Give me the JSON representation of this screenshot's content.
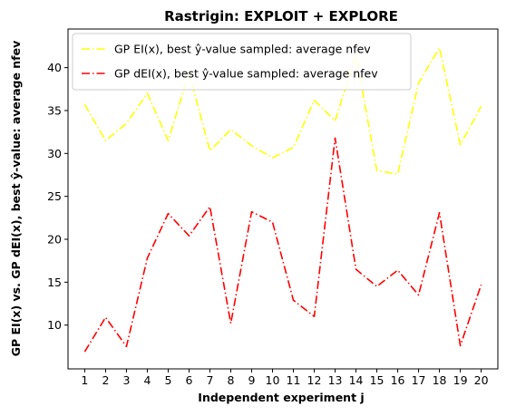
{
  "chart_data": {
    "type": "line",
    "title": "Rastrigin: EXPLOIT + EXPLORE",
    "xlabel": "Independent experiment j",
    "ylabel": "GP EI(x) vs. GP dEI(x), best ŷ-value: average nfev",
    "x": [
      1,
      2,
      3,
      4,
      5,
      6,
      7,
      8,
      9,
      10,
      11,
      12,
      13,
      14,
      15,
      16,
      17,
      18,
      19,
      20
    ],
    "xlim": [
      0.2,
      20.8
    ],
    "ylim": [
      4.9,
      44.5
    ],
    "yticks": [
      10,
      15,
      20,
      25,
      30,
      35,
      40
    ],
    "grid": false,
    "legend_position": "top-left",
    "series": [
      {
        "name": "GP EI(x), best ŷ-value sampled: average nfev",
        "color": "#ffff00",
        "dash": "dash-dot",
        "values": [
          35.7,
          31.5,
          33.5,
          37.0,
          31.5,
          39.4,
          30.3,
          32.8,
          30.9,
          29.5,
          30.7,
          36.2,
          33.8,
          41.5,
          28.0,
          27.6,
          38.2,
          42.3,
          31.0,
          35.5
        ]
      },
      {
        "name": "GP dEI(x), best ŷ-value sampled: average nfev",
        "color": "#ff0000",
        "dash": "dash-dot",
        "values": [
          6.9,
          10.9,
          7.5,
          17.8,
          23.0,
          20.4,
          23.8,
          10.2,
          23.2,
          22.0,
          12.9,
          11.0,
          31.8,
          16.5,
          14.5,
          16.4,
          13.5,
          23.1,
          7.6,
          14.7
        ]
      }
    ]
  }
}
